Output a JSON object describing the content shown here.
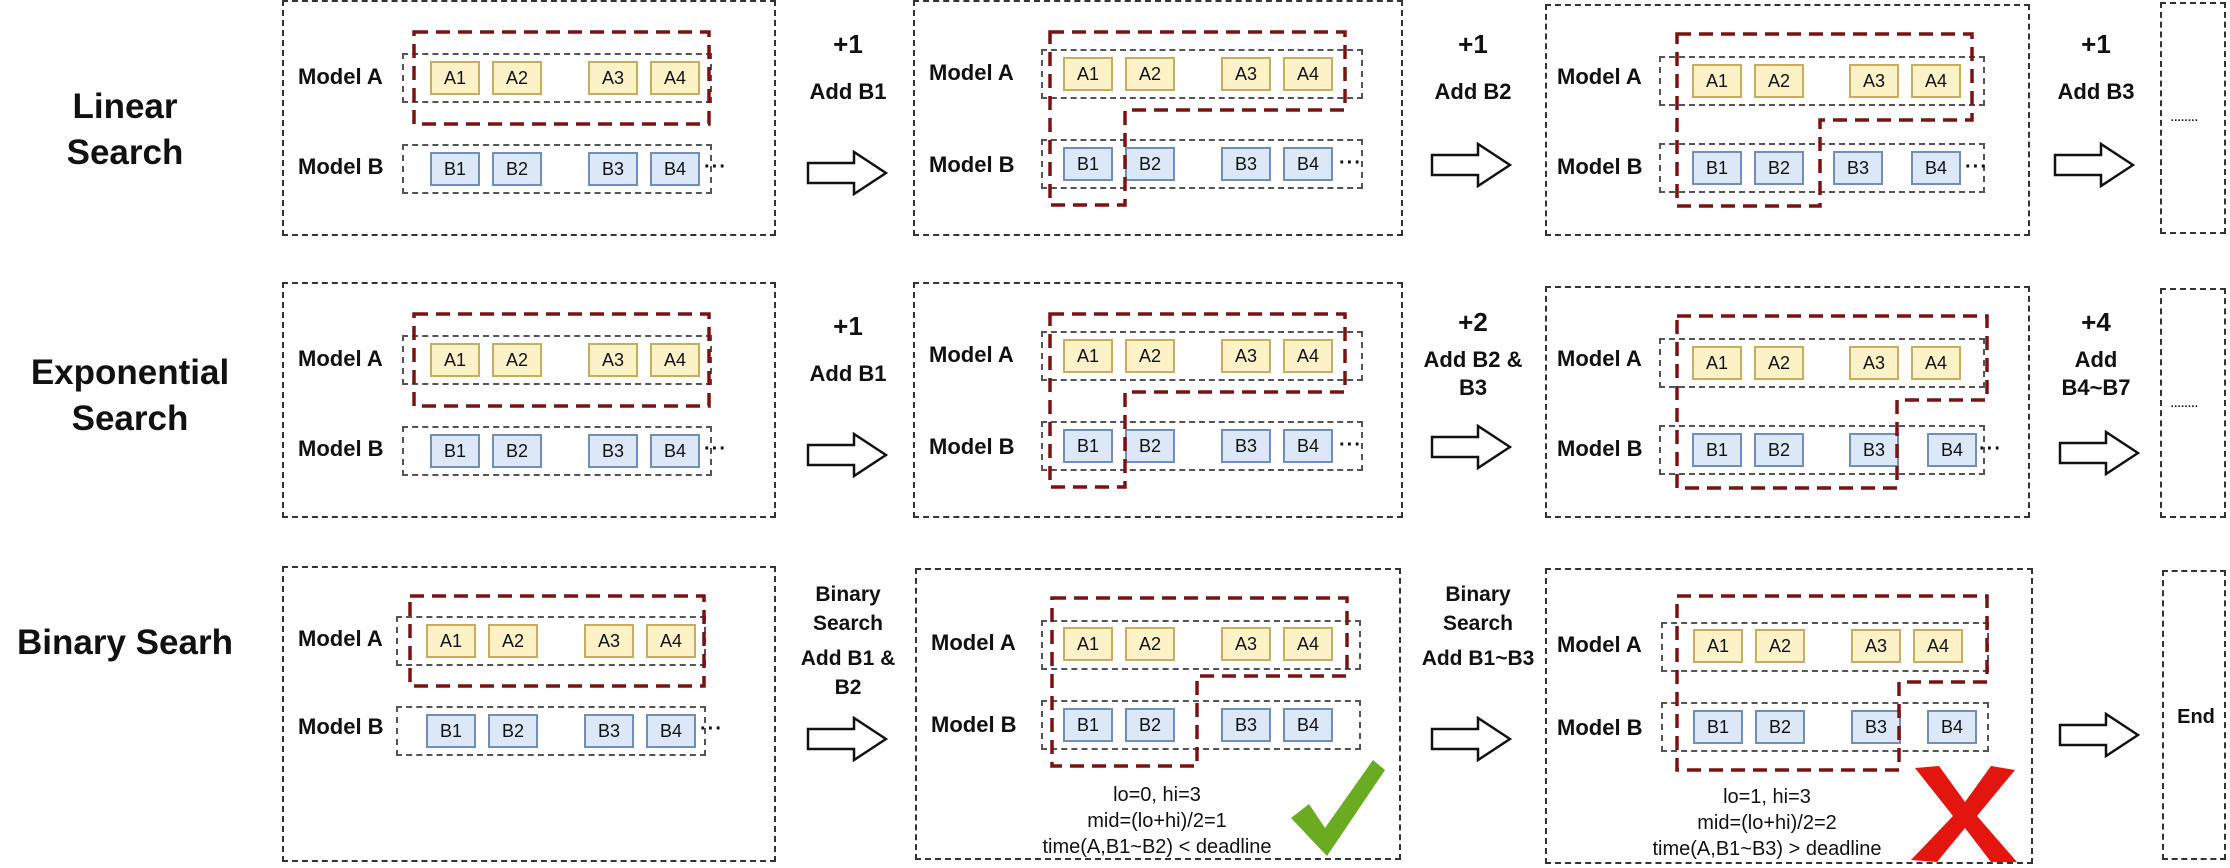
{
  "rows": [
    {
      "title": "Linear Search",
      "panels": [
        {
          "model_a": "Model A",
          "model_b": "Model B",
          "a_blocks": [
            "A1",
            "A2",
            "A3",
            "A4"
          ],
          "b_blocks": [
            "B1",
            "B2",
            "B3",
            "B4"
          ],
          "b_more": "···"
        },
        {
          "model_a": "Model A",
          "model_b": "Model B",
          "a_blocks": [
            "A1",
            "A2",
            "A3",
            "A4"
          ],
          "b_blocks": [
            "B1",
            "B2",
            "B3",
            "B4"
          ],
          "b_more": "···"
        },
        {
          "model_a": "Model A",
          "model_b": "Model B",
          "a_blocks": [
            "A1",
            "A2",
            "A3",
            "A4"
          ],
          "b_blocks": [
            "B1",
            "B2",
            "B3",
            "B4"
          ],
          "b_more": "···"
        }
      ],
      "steps": [
        {
          "num": "+1",
          "text": "Add B1"
        },
        {
          "num": "+1",
          "text": "Add B2"
        },
        {
          "num": "+1",
          "text": "Add B3"
        }
      ],
      "end_text": "........"
    },
    {
      "title": "Exponential Search",
      "panels": [
        {
          "model_a": "Model A",
          "model_b": "Model B",
          "a_blocks": [
            "A1",
            "A2",
            "A3",
            "A4"
          ],
          "b_blocks": [
            "B1",
            "B2",
            "B3",
            "B4"
          ],
          "b_more": "···"
        },
        {
          "model_a": "Model A",
          "model_b": "Model B",
          "a_blocks": [
            "A1",
            "A2",
            "A3",
            "A4"
          ],
          "b_blocks": [
            "B1",
            "B2",
            "B3",
            "B4"
          ],
          "b_more": "···"
        },
        {
          "model_a": "Model A",
          "model_b": "Model B",
          "a_blocks": [
            "A1",
            "A2",
            "A3",
            "A4"
          ],
          "b_blocks": [
            "B1",
            "B2",
            "B3",
            "B4"
          ],
          "b_more": "···"
        }
      ],
      "steps": [
        {
          "num": "+1",
          "text": "Add B1"
        },
        {
          "num": "+2",
          "text": "Add B2 & B3"
        },
        {
          "num": "+4",
          "text": "Add B4~B7"
        }
      ],
      "end_text": "........"
    },
    {
      "title": "Binary Searh",
      "panels": [
        {
          "model_a": "Model A",
          "model_b": "Model B",
          "a_blocks": [
            "A1",
            "A2",
            "A3",
            "A4"
          ],
          "b_blocks": [
            "B1",
            "B2",
            "B3",
            "B4"
          ],
          "b_more": "···"
        },
        {
          "model_a": "Model A",
          "model_b": "Model B",
          "a_blocks": [
            "A1",
            "A2",
            "A3",
            "A4"
          ],
          "b_blocks": [
            "B1",
            "B2",
            "B3",
            "B4"
          ],
          "b_more": "",
          "note": [
            "lo=0, hi=3",
            "mid=(lo+hi)/2=1",
            "time(A,B1~B2) < deadline"
          ],
          "result": "check"
        },
        {
          "model_a": "Model A",
          "model_b": "Model B",
          "a_blocks": [
            "A1",
            "A2",
            "A3",
            "A4"
          ],
          "b_blocks": [
            "B1",
            "B2",
            "B3",
            "B4"
          ],
          "b_more": "",
          "note": [
            "lo=1, hi=3",
            "mid=(lo+hi)/2=2",
            "time(A,B1~B3) > deadline"
          ],
          "result": "cross"
        }
      ],
      "steps": [
        {
          "num": "Binary Search",
          "text": "Add B1 & B2"
        },
        {
          "num": "Binary Search",
          "text": "Add B1~B3"
        }
      ],
      "end_text": "End"
    }
  ],
  "colors": {
    "selection": "#7b1212",
    "check": "#6aab22",
    "cross": "#e3150f",
    "a_fill": "#fdf1c8",
    "b_fill": "#dce8f7"
  }
}
